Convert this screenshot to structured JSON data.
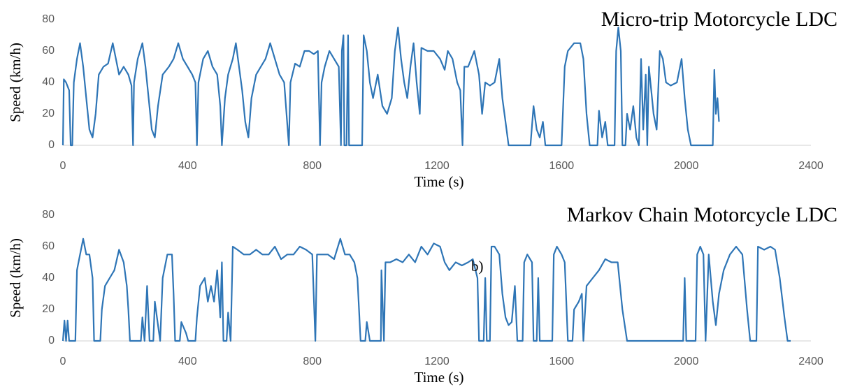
{
  "chart_data": [
    {
      "type": "line",
      "title": "Micro-trip Motorcycle LDC",
      "xlabel": "Time (s)",
      "ylabel": "Speed (km/h)",
      "color": "#2e75b6",
      "xlim": [
        0,
        2400
      ],
      "xticks": [
        0,
        400,
        800,
        1200,
        1600,
        2000,
        2400
      ],
      "ylim": [
        0,
        80
      ],
      "yticks": [
        0,
        20,
        40,
        60,
        80
      ],
      "x": [
        0,
        3,
        10,
        20,
        25,
        30,
        35,
        45,
        55,
        65,
        75,
        85,
        95,
        105,
        115,
        130,
        145,
        160,
        170,
        180,
        195,
        210,
        220,
        225,
        228,
        240,
        255,
        265,
        275,
        285,
        295,
        305,
        320,
        340,
        355,
        370,
        385,
        400,
        415,
        425,
        430,
        435,
        450,
        465,
        480,
        495,
        505,
        510,
        520,
        530,
        545,
        555,
        565,
        575,
        585,
        595,
        605,
        620,
        635,
        650,
        665,
        680,
        695,
        710,
        725,
        730,
        745,
        760,
        775,
        790,
        805,
        818,
        825,
        830,
        840,
        855,
        870,
        885,
        892,
        895,
        900,
        903,
        910,
        915,
        918,
        960,
        965,
        975,
        985,
        995,
        1010,
        1025,
        1040,
        1055,
        1065,
        1075,
        1085,
        1095,
        1105,
        1115,
        1125,
        1135,
        1145,
        1150,
        1170,
        1190,
        1210,
        1225,
        1235,
        1250,
        1265,
        1275,
        1282,
        1288,
        1300,
        1320,
        1335,
        1345,
        1355,
        1370,
        1385,
        1400,
        1410,
        1420,
        1430,
        1500,
        1510,
        1520,
        1530,
        1540,
        1548,
        1600,
        1610,
        1620,
        1640,
        1660,
        1670,
        1680,
        1690,
        1715,
        1720,
        1730,
        1740,
        1748,
        1770,
        1775,
        1782,
        1790,
        1795,
        1805,
        1810,
        1820,
        1830,
        1840,
        1848,
        1855,
        1862,
        1870,
        1875,
        1880,
        1895,
        1905,
        1915,
        1925,
        1935,
        1950,
        1970,
        1985,
        1995,
        2005,
        2015,
        2085,
        2090,
        2095,
        2100,
        2105
      ],
      "values": [
        0,
        42,
        40,
        35,
        0,
        0,
        40,
        55,
        65,
        50,
        30,
        10,
        5,
        20,
        45,
        50,
        52,
        65,
        55,
        45,
        50,
        45,
        38,
        0,
        40,
        55,
        65,
        50,
        30,
        10,
        5,
        25,
        45,
        50,
        55,
        65,
        55,
        50,
        45,
        40,
        0,
        40,
        55,
        60,
        50,
        45,
        25,
        0,
        30,
        45,
        55,
        65,
        50,
        35,
        15,
        5,
        30,
        45,
        50,
        55,
        65,
        55,
        45,
        40,
        0,
        40,
        52,
        50,
        60,
        60,
        58,
        60,
        0,
        40,
        50,
        60,
        55,
        50,
        0,
        60,
        70,
        0,
        0,
        70,
        0,
        0,
        70,
        60,
        40,
        30,
        45,
        25,
        20,
        30,
        60,
        75,
        55,
        40,
        30,
        50,
        65,
        40,
        20,
        62,
        60,
        60,
        55,
        48,
        60,
        55,
        40,
        35,
        0,
        50,
        50,
        60,
        45,
        20,
        40,
        38,
        40,
        55,
        30,
        15,
        0,
        0,
        25,
        10,
        5,
        15,
        0,
        0,
        50,
        60,
        65,
        65,
        55,
        20,
        0,
        0,
        22,
        5,
        15,
        0,
        0,
        60,
        75,
        60,
        0,
        0,
        20,
        10,
        25,
        5,
        0,
        55,
        10,
        45,
        0,
        50,
        20,
        10,
        60,
        55,
        40,
        38,
        40,
        55,
        30,
        10,
        0,
        0,
        48,
        20,
        30,
        15
      ]
    },
    {
      "type": "line",
      "title": "Markov Chain Motorcycle LDC",
      "xlabel": "Time (s)",
      "ylabel": "Speed (km/h)",
      "annotation": "b)",
      "color": "#2e75b6",
      "xlim": [
        0,
        2400
      ],
      "xticks": [
        0,
        400,
        800,
        1200,
        1600,
        2000,
        2400
      ],
      "ylim": [
        0,
        80
      ],
      "yticks": [
        0,
        20,
        40,
        60,
        80
      ],
      "x": [
        0,
        5,
        10,
        15,
        20,
        40,
        45,
        55,
        65,
        75,
        85,
        95,
        100,
        120,
        125,
        135,
        150,
        165,
        180,
        195,
        205,
        210,
        215,
        250,
        255,
        262,
        270,
        278,
        290,
        295,
        305,
        312,
        320,
        335,
        350,
        355,
        360,
        375,
        380,
        395,
        402,
        425,
        430,
        440,
        455,
        465,
        475,
        485,
        495,
        505,
        510,
        515,
        525,
        530,
        538,
        545,
        560,
        580,
        600,
        620,
        640,
        660,
        680,
        700,
        720,
        740,
        760,
        780,
        800,
        810,
        815,
        830,
        850,
        870,
        890,
        905,
        920,
        935,
        945,
        955,
        970,
        975,
        985,
        1020,
        1022,
        1030,
        1035,
        1050,
        1070,
        1090,
        1110,
        1130,
        1150,
        1170,
        1190,
        1210,
        1225,
        1240,
        1260,
        1280,
        1300,
        1315,
        1330,
        1335,
        1350,
        1355,
        1360,
        1370,
        1375,
        1385,
        1400,
        1410,
        1420,
        1430,
        1440,
        1450,
        1458,
        1475,
        1480,
        1490,
        1505,
        1510,
        1520,
        1525,
        1530,
        1570,
        1575,
        1585,
        1600,
        1610,
        1620,
        1635,
        1640,
        1655,
        1665,
        1670,
        1680,
        1700,
        1720,
        1740,
        1760,
        1780,
        1795,
        1810,
        1990,
        1995,
        2000,
        2030,
        2035,
        2045,
        2055,
        2062,
        2072,
        2085,
        2095,
        2105,
        2120,
        2140,
        2160,
        2180,
        2195,
        2205,
        2225,
        2230,
        2250,
        2270,
        2285,
        2300,
        2315,
        2325,
        2335
      ],
      "values": [
        0,
        13,
        0,
        13,
        0,
        0,
        45,
        55,
        65,
        55,
        55,
        40,
        0,
        0,
        20,
        35,
        40,
        45,
        58,
        50,
        35,
        20,
        0,
        0,
        15,
        0,
        35,
        0,
        0,
        25,
        10,
        0,
        40,
        55,
        55,
        30,
        0,
        0,
        12,
        5,
        0,
        0,
        15,
        35,
        40,
        25,
        35,
        25,
        45,
        15,
        50,
        0,
        0,
        18,
        0,
        60,
        58,
        55,
        55,
        58,
        55,
        55,
        60,
        52,
        55,
        55,
        60,
        58,
        55,
        0,
        55,
        55,
        55,
        52,
        65,
        55,
        55,
        50,
        40,
        0,
        0,
        12,
        0,
        0,
        45,
        0,
        50,
        50,
        52,
        50,
        55,
        50,
        60,
        55,
        62,
        60,
        50,
        45,
        50,
        48,
        50,
        52,
        40,
        0,
        0,
        40,
        0,
        0,
        60,
        60,
        55,
        30,
        15,
        10,
        12,
        35,
        0,
        0,
        50,
        55,
        50,
        0,
        0,
        40,
        0,
        0,
        55,
        60,
        55,
        50,
        0,
        0,
        20,
        25,
        30,
        0,
        35,
        40,
        45,
        52,
        50,
        50,
        20,
        0,
        0,
        40,
        0,
        0,
        55,
        60,
        55,
        0,
        55,
        25,
        10,
        30,
        45,
        55,
        60,
        55,
        20,
        0,
        0,
        60,
        58,
        60,
        58,
        40,
        15,
        0,
        0
      ]
    }
  ]
}
